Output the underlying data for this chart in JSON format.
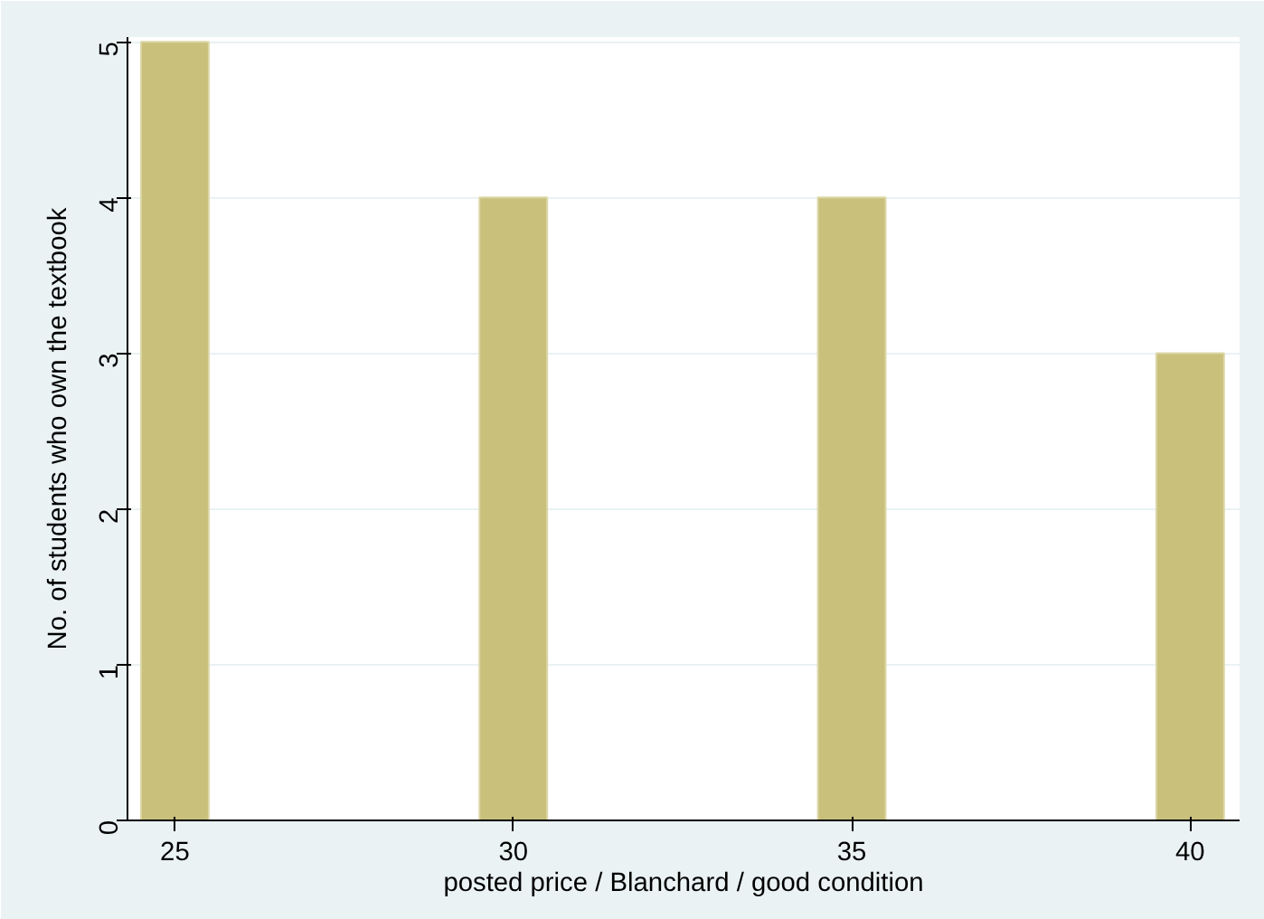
{
  "chart_data": {
    "type": "bar",
    "xlabel": "posted price / Blanchard / good condition",
    "ylabel": "No. of students who own the textbook",
    "x": [
      25,
      30,
      35,
      40
    ],
    "values": [
      5,
      4,
      4,
      3
    ],
    "color": "#c9c07c",
    "xlim": [
      24.3,
      40.73
    ],
    "xticks": [
      25,
      30,
      35,
      40
    ],
    "ylim": [
      0,
      5.03
    ],
    "yticks": [
      0,
      1,
      2,
      3,
      4,
      5
    ],
    "grid": "y"
  }
}
